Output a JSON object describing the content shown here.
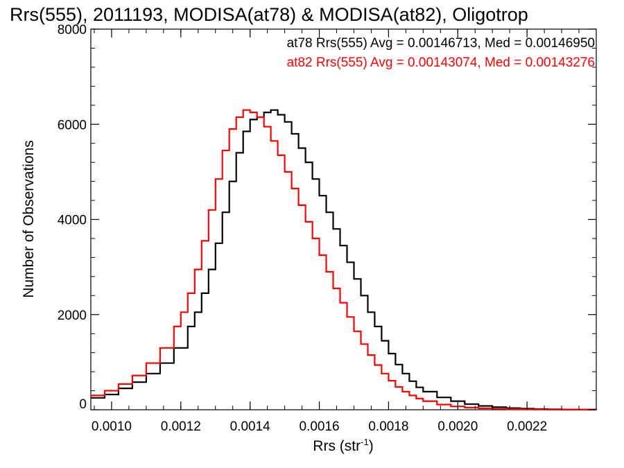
{
  "chart_data": {
    "type": "line",
    "title": "Rrs(555), 2011193, MODISA(at78) & MODISA(at82), Oligotrop",
    "xlabel": "Rrs (str",
    "xlabel_sup": "-1",
    "xlabel_close": ")",
    "ylabel": "Number of Observations",
    "xlim": [
      0.00094,
      0.0024
    ],
    "ylim": [
      0,
      8000
    ],
    "x_ticks": [
      0.001,
      0.0012,
      0.0014,
      0.0016,
      0.0018,
      0.002,
      0.0022
    ],
    "x_tick_labels": [
      "0.0010",
      "0.0012",
      "0.0014",
      "0.0016",
      "0.0018",
      "0.0020",
      "0.0022"
    ],
    "y_ticks": [
      0,
      2000,
      4000,
      6000,
      8000
    ],
    "y_tick_labels": [
      "0",
      "2000",
      "4000",
      "6000",
      "8000"
    ],
    "grid": false,
    "legend_position": "top-right",
    "annotations": [
      {
        "text": "at78 Rrs(555) Avg = 0.00146713, Med = 0.00146950",
        "color": "#000000"
      },
      {
        "text": "at82 Rrs(555) Avg = 0.00143074, Med = 0.00143276",
        "color": "#ff0000"
      }
    ],
    "series": [
      {
        "color": "#000000",
        "x": [
          0.00094,
          0.00098,
          0.00102,
          0.00106,
          0.0011,
          0.00114,
          0.00118,
          0.00122,
          0.00124,
          0.00126,
          0.00128,
          0.0013,
          0.00132,
          0.00134,
          0.00136,
          0.00138,
          0.0014,
          0.00142,
          0.00144,
          0.00146,
          0.00148,
          0.0015,
          0.00152,
          0.00154,
          0.00156,
          0.00158,
          0.0016,
          0.00162,
          0.00164,
          0.00166,
          0.00168,
          0.0017,
          0.00172,
          0.00174,
          0.00176,
          0.00178,
          0.0018,
          0.00182,
          0.00184,
          0.00186,
          0.00188,
          0.0019,
          0.00194,
          0.00198,
          0.00202,
          0.00206,
          0.0021,
          0.00214,
          0.00218,
          0.00222,
          0.00226,
          0.0023,
          0.00234,
          0.0024
        ],
        "y": [
          250,
          320,
          450,
          580,
          760,
          980,
          1300,
          1750,
          2050,
          2450,
          2950,
          3500,
          4150,
          4800,
          5400,
          5850,
          6100,
          6150,
          6250,
          6300,
          6200,
          6050,
          5800,
          5500,
          5200,
          4850,
          4500,
          4150,
          3800,
          3450,
          3100,
          2750,
          2400,
          2050,
          1750,
          1450,
          1180,
          950,
          760,
          600,
          470,
          380,
          260,
          180,
          120,
          80,
          55,
          35,
          25,
          15,
          10,
          6,
          4,
          2
        ]
      },
      {
        "color": "#ff0000",
        "x": [
          0.00094,
          0.00098,
          0.00102,
          0.00106,
          0.0011,
          0.00114,
          0.00118,
          0.0012,
          0.00122,
          0.00124,
          0.00126,
          0.00128,
          0.0013,
          0.00132,
          0.00134,
          0.00136,
          0.00138,
          0.0014,
          0.00142,
          0.00144,
          0.00146,
          0.00148,
          0.0015,
          0.00152,
          0.00154,
          0.00156,
          0.00158,
          0.0016,
          0.00162,
          0.00164,
          0.00166,
          0.00168,
          0.0017,
          0.00172,
          0.00174,
          0.00176,
          0.00178,
          0.0018,
          0.00182,
          0.00184,
          0.00186,
          0.00188,
          0.0019,
          0.00194,
          0.00198,
          0.00202,
          0.00206,
          0.0021,
          0.00214,
          0.00218,
          0.00222,
          0.00226,
          0.0023,
          0.00234,
          0.0024
        ],
        "y": [
          300,
          400,
          540,
          720,
          980,
          1300,
          1750,
          2050,
          2450,
          2950,
          3550,
          4200,
          4850,
          5450,
          5900,
          6150,
          6300,
          6250,
          6150,
          5950,
          5650,
          5350,
          5000,
          4650,
          4300,
          3950,
          3600,
          3250,
          2900,
          2550,
          2250,
          1950,
          1650,
          1380,
          1150,
          940,
          760,
          610,
          480,
          380,
          300,
          235,
          180,
          110,
          70,
          45,
          30,
          20,
          13,
          8,
          5,
          3,
          2,
          1,
          0
        ]
      }
    ]
  }
}
